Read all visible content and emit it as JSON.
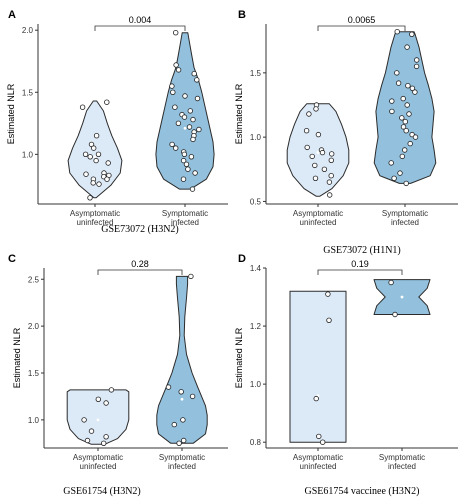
{
  "colors": {
    "asymptomatic": "#dce9f7",
    "symptomatic": "#93c0dc",
    "outline": "#2b2b2b",
    "point": "#ffffff"
  },
  "chart_data": [
    {
      "panel": "A",
      "type": "violin",
      "dataset": "GSE73072 (H3N2)",
      "categories": [
        "Asymptomatic\nuninfected",
        "Symptomatic\ninfected"
      ],
      "ylabel": "Estimated NLR",
      "ylim": [
        0.6,
        2.05
      ],
      "yticks": [
        1.0,
        1.5,
        2.0
      ],
      "yticklabels": [
        "1.0",
        "1.5",
        "2.0"
      ],
      "p_value": "0.004",
      "groups": [
        {
          "name": "Asymptomatic uninfected",
          "mean": 0.98,
          "points": [
            1.42,
            1.38,
            1.15,
            1.08,
            1.05,
            1.0,
            1.0,
            0.98,
            0.95,
            0.93,
            0.85,
            0.84,
            0.83,
            0.82,
            0.8,
            0.8,
            0.77,
            0.76,
            0.65
          ],
          "density": [
            [
              0.65,
              0.02
            ],
            [
              0.75,
              0.28
            ],
            [
              0.85,
              0.45
            ],
            [
              0.95,
              0.48
            ],
            [
              1.05,
              0.4
            ],
            [
              1.15,
              0.3
            ],
            [
              1.25,
              0.22
            ],
            [
              1.35,
              0.15
            ],
            [
              1.43,
              0.03
            ]
          ]
        },
        {
          "name": "Symptomatic infected",
          "mean": 1.21,
          "points": [
            1.98,
            1.72,
            1.68,
            1.65,
            1.6,
            1.55,
            1.5,
            1.47,
            1.45,
            1.38,
            1.35,
            1.32,
            1.3,
            1.28,
            1.25,
            1.22,
            1.2,
            1.18,
            1.15,
            1.12,
            1.08,
            1.05,
            1.02,
            1.0,
            0.98,
            0.95,
            0.92,
            0.88,
            0.85,
            0.8,
            0.72
          ],
          "density": [
            [
              0.72,
              0.1
            ],
            [
              0.8,
              0.38
            ],
            [
              0.9,
              0.5
            ],
            [
              1.0,
              0.52
            ],
            [
              1.1,
              0.5
            ],
            [
              1.2,
              0.45
            ],
            [
              1.3,
              0.4
            ],
            [
              1.4,
              0.35
            ],
            [
              1.5,
              0.3
            ],
            [
              1.6,
              0.24
            ],
            [
              1.7,
              0.16
            ],
            [
              1.8,
              0.12
            ],
            [
              1.9,
              0.08
            ],
            [
              1.98,
              0.05
            ]
          ]
        }
      ]
    },
    {
      "panel": "B",
      "type": "violin",
      "dataset": "GSE73072 (H1N1)",
      "categories": [
        "Asymptomatic\nuninfected",
        "Symptomatic\ninfected"
      ],
      "ylabel": "Estimated NLR",
      "ylim": [
        0.48,
        1.88
      ],
      "yticks": [
        0.5,
        1.0,
        1.5
      ],
      "yticklabels": [
        "0.5",
        "1.0",
        "1.5"
      ],
      "p_value": "0.0065",
      "groups": [
        {
          "name": "Asymptomatic uninfected",
          "mean": 0.88,
          "points": [
            1.25,
            1.22,
            1.18,
            1.05,
            1.02,
            0.92,
            0.9,
            0.88,
            0.87,
            0.85,
            0.82,
            0.78,
            0.75,
            0.7,
            0.68,
            0.65,
            0.55
          ],
          "density": [
            [
              0.54,
              0.03
            ],
            [
              0.6,
              0.25
            ],
            [
              0.7,
              0.45
            ],
            [
              0.8,
              0.55
            ],
            [
              0.9,
              0.55
            ],
            [
              1.0,
              0.5
            ],
            [
              1.1,
              0.42
            ],
            [
              1.2,
              0.32
            ],
            [
              1.26,
              0.2
            ]
          ]
        },
        {
          "name": "Symptomatic infected",
          "mean": 1.13,
          "points": [
            1.82,
            1.8,
            1.7,
            1.6,
            1.55,
            1.5,
            1.42,
            1.4,
            1.38,
            1.35,
            1.3,
            1.28,
            1.25,
            1.2,
            1.18,
            1.15,
            1.12,
            1.08,
            1.05,
            1.02,
            1.0,
            0.95,
            0.9,
            0.85,
            0.8,
            0.72,
            0.68,
            0.64
          ],
          "density": [
            [
              0.64,
              0.1
            ],
            [
              0.7,
              0.45
            ],
            [
              0.8,
              0.55
            ],
            [
              0.9,
              0.52
            ],
            [
              1.0,
              0.48
            ],
            [
              1.1,
              0.5
            ],
            [
              1.2,
              0.52
            ],
            [
              1.3,
              0.48
            ],
            [
              1.4,
              0.42
            ],
            [
              1.5,
              0.35
            ],
            [
              1.6,
              0.3
            ],
            [
              1.7,
              0.25
            ],
            [
              1.8,
              0.18
            ],
            [
              1.82,
              0.16
            ]
          ]
        }
      ]
    },
    {
      "panel": "C",
      "type": "violin",
      "dataset": "GSE61754 (H3N2)",
      "categories": [
        "Asymptomatic\nuninfected",
        "Symptomatic\ninfected"
      ],
      "ylabel": "Estimated NLR",
      "ylim": [
        0.7,
        2.62
      ],
      "yticks": [
        1.0,
        1.5,
        2.0,
        2.5
      ],
      "yticklabels": [
        "1.0",
        "1.5",
        "2.0",
        "2.5"
      ],
      "p_value": "0.28",
      "groups": [
        {
          "name": "Asymptomatic uninfected",
          "mean": 1.0,
          "points": [
            1.32,
            1.22,
            1.18,
            1.0,
            0.88,
            0.82,
            0.78,
            0.75
          ],
          "density": [
            [
              0.74,
              0.12
            ],
            [
              0.8,
              0.35
            ],
            [
              0.9,
              0.5
            ],
            [
              1.0,
              0.55
            ],
            [
              1.1,
              0.55
            ],
            [
              1.2,
              0.55
            ],
            [
              1.3,
              0.55
            ],
            [
              1.32,
              0.5
            ]
          ]
        },
        {
          "name": "Symptomatic infected",
          "mean": 1.22,
          "points": [
            2.53,
            1.35,
            1.3,
            1.25,
            1.0,
            0.95,
            0.78,
            0.75
          ],
          "density": [
            [
              0.75,
              0.2
            ],
            [
              0.85,
              0.42
            ],
            [
              0.95,
              0.45
            ],
            [
              1.05,
              0.45
            ],
            [
              1.15,
              0.42
            ],
            [
              1.25,
              0.35
            ],
            [
              1.35,
              0.28
            ],
            [
              1.5,
              0.18
            ],
            [
              1.7,
              0.08
            ],
            [
              1.9,
              0.04
            ],
            [
              2.1,
              0.05
            ],
            [
              2.3,
              0.08
            ],
            [
              2.45,
              0.1
            ],
            [
              2.53,
              0.1
            ]
          ]
        }
      ]
    },
    {
      "panel": "D",
      "type": "violin",
      "dataset": "GSE61754 vaccinee (H3N2)",
      "categories": [
        "Asymptomatic\nuninfected",
        "Symptomatic\ninfected"
      ],
      "ylabel": "Estimated NLR",
      "ylim": [
        0.78,
        1.4
      ],
      "yticks": [
        0.8,
        1.0,
        1.2,
        1.4
      ],
      "yticklabels": [
        "0.8",
        "1.0",
        "1.2",
        "1.4"
      ],
      "p_value": "0.19",
      "groups": [
        {
          "name": "Asymptomatic uninfected",
          "mean": 0.96,
          "points": [
            1.31,
            1.22,
            0.95,
            0.82,
            0.8
          ],
          "density": [
            [
              0.8,
              0.5
            ],
            [
              0.9,
              0.5
            ],
            [
              1.0,
              0.5
            ],
            [
              1.1,
              0.5
            ],
            [
              1.2,
              0.5
            ],
            [
              1.32,
              0.5
            ]
          ]
        },
        {
          "name": "Symptomatic infected",
          "mean": 1.3,
          "points": [
            1.35,
            1.24
          ],
          "density": [
            [
              1.24,
              0.5
            ],
            [
              1.27,
              0.45
            ],
            [
              1.3,
              0.3
            ],
            [
              1.33,
              0.45
            ],
            [
              1.36,
              0.5
            ]
          ]
        }
      ]
    }
  ]
}
